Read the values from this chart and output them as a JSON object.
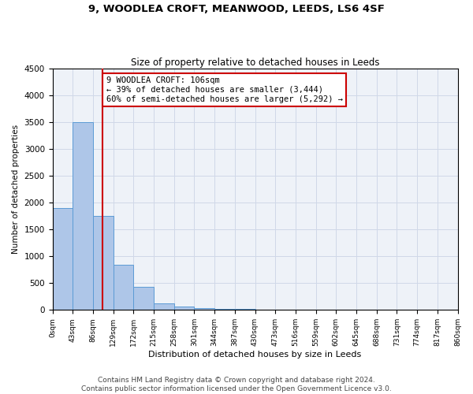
{
  "title1": "9, WOODLEA CROFT, MEANWOOD, LEEDS, LS6 4SF",
  "title2": "Size of property relative to detached houses in Leeds",
  "xlabel": "Distribution of detached houses by size in Leeds",
  "ylabel": "Number of detached properties",
  "bin_edges": [
    0,
    43,
    86,
    129,
    172,
    215,
    258,
    301,
    344,
    387,
    430,
    473,
    516,
    559,
    602,
    645,
    688,
    731,
    774,
    817,
    860
  ],
  "bar_heights": [
    1900,
    3500,
    1750,
    840,
    430,
    120,
    60,
    30,
    20,
    15,
    10,
    8,
    6,
    5,
    4,
    3,
    3,
    2,
    2,
    2
  ],
  "bar_color": "#aec6e8",
  "bar_edge_color": "#5b9bd5",
  "vline_x": 106,
  "vline_color": "#cc0000",
  "annotation_line1": "9 WOODLEA CROFT: 106sqm",
  "annotation_line2": "← 39% of detached houses are smaller (3,444)",
  "annotation_line3": "60% of semi-detached houses are larger (5,292) →",
  "annotation_box_color": "#cc0000",
  "ylim": [
    0,
    4500
  ],
  "yticks": [
    0,
    500,
    1000,
    1500,
    2000,
    2500,
    3000,
    3500,
    4000,
    4500
  ],
  "xtick_labels": [
    "0sqm",
    "43sqm",
    "86sqm",
    "129sqm",
    "172sqm",
    "215sqm",
    "258sqm",
    "301sqm",
    "344sqm",
    "387sqm",
    "430sqm",
    "473sqm",
    "516sqm",
    "559sqm",
    "602sqm",
    "645sqm",
    "688sqm",
    "731sqm",
    "774sqm",
    "817sqm",
    "860sqm"
  ],
  "grid_color": "#d0d8e8",
  "background_color": "#eef2f8",
  "footer_text": "Contains HM Land Registry data © Crown copyright and database right 2024.\nContains public sector information licensed under the Open Government Licence v3.0.",
  "title1_fontsize": 9.5,
  "title2_fontsize": 8.5,
  "annotation_fontsize": 7.5,
  "footer_fontsize": 6.5,
  "ylabel_fontsize": 7.5,
  "xlabel_fontsize": 8.0
}
